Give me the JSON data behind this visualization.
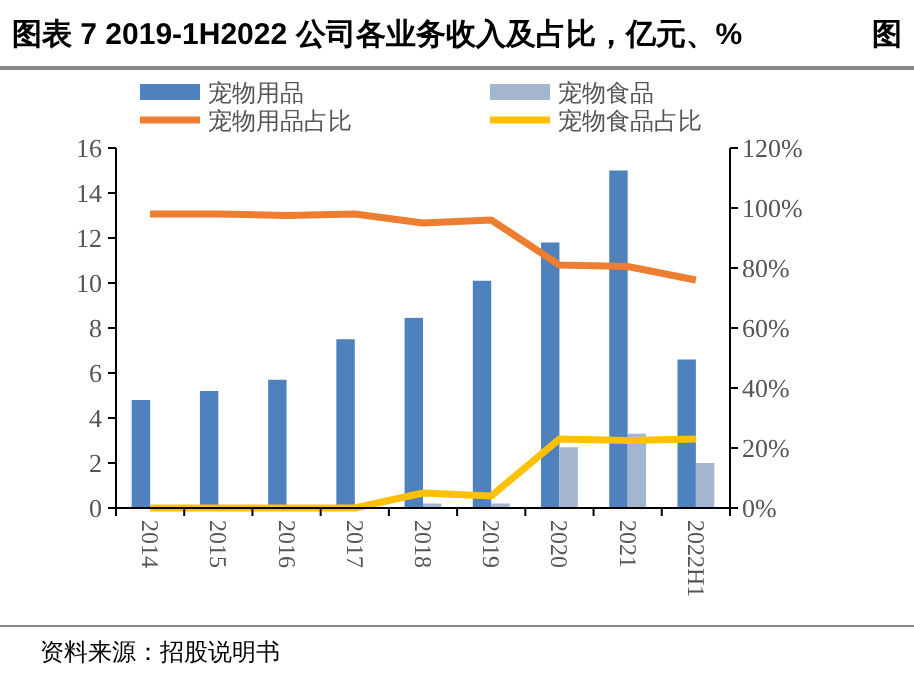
{
  "chart_data": {
    "type": "bar",
    "title": "图表 7 2019-1H2022 公司各业务收入及占比，亿元、%",
    "annotations": [
      "图",
      "资料来源：招股说明书"
    ],
    "categories": [
      "2014",
      "2015",
      "2016",
      "2017",
      "2018",
      "2019",
      "2020",
      "2021",
      "2022H1"
    ],
    "series": [
      {
        "name": "宠物用品",
        "color": "#4f81bd",
        "values": [
          4.8,
          5.2,
          5.7,
          7.5,
          8.45,
          10.1,
          11.8,
          15.0,
          6.6
        ]
      },
      {
        "name": "宠物食品",
        "color": "#a6b5cf",
        "values": [
          0,
          0,
          0,
          0,
          0.2,
          0.2,
          2.7,
          3.3,
          2.0
        ]
      },
      {
        "name": "宠物用品占比",
        "type": "line",
        "axis": "y2",
        "color": "#ed7d31",
        "values": [
          98,
          98,
          97.5,
          98,
          95,
          96,
          81,
          80.5,
          76
        ]
      },
      {
        "name": "宠物食品占比",
        "type": "line",
        "axis": "y2",
        "color": "#ffc000",
        "values": [
          0,
          0,
          0,
          0,
          5,
          4,
          23,
          22.5,
          23
        ]
      }
    ],
    "ylim": [
      0,
      16
    ],
    "yticks": [
      0,
      2,
      4,
      6,
      8,
      10,
      12,
      14,
      16
    ],
    "y2lim": [
      0,
      120
    ],
    "y2ticks": [
      {
        "value": 0,
        "label": "0%"
      },
      {
        "value": 20,
        "label": "20%"
      },
      {
        "value": 40,
        "label": "40%"
      },
      {
        "value": 60,
        "label": "60%"
      },
      {
        "value": 80,
        "label": "80%"
      },
      {
        "value": 100,
        "label": "100%"
      },
      {
        "value": 120,
        "label": "120%"
      }
    ],
    "legend": "top",
    "grid": false
  }
}
